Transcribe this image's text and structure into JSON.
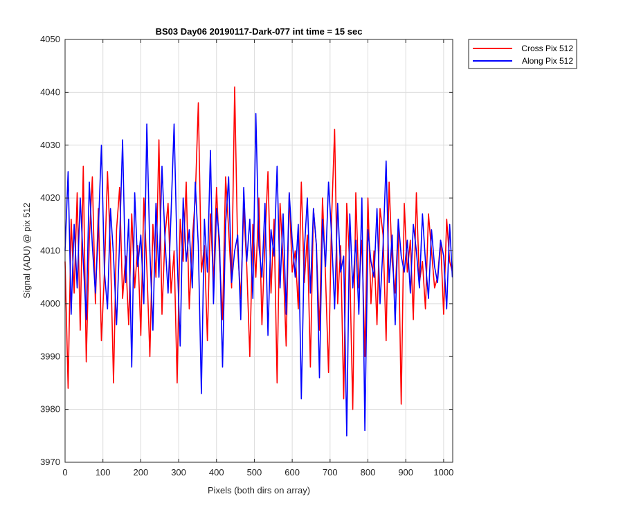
{
  "chart_data": {
    "type": "line",
    "title": "BS03 Day06 20190117-Dark-077 int time = 15 sec",
    "xlabel": "Pixels (both dirs on array)",
    "ylabel": "Signal (ADU) @ pix 512",
    "xlim": [
      0,
      1024
    ],
    "ylim": [
      3970,
      4050
    ],
    "xticks": [
      0,
      100,
      200,
      300,
      400,
      500,
      600,
      700,
      800,
      900,
      1000
    ],
    "yticks": [
      3970,
      3980,
      3990,
      4000,
      4010,
      4020,
      4030,
      4040,
      4050
    ],
    "grid": true,
    "legend_position": "outside-top-right",
    "series": [
      {
        "name": "Cross Pix 512",
        "color": "#ff0000",
        "x": [
          0,
          8,
          16,
          24,
          32,
          40,
          48,
          56,
          64,
          72,
          80,
          88,
          96,
          104,
          112,
          120,
          128,
          136,
          144,
          152,
          160,
          168,
          176,
          184,
          192,
          200,
          208,
          216,
          224,
          232,
          240,
          248,
          256,
          264,
          272,
          280,
          288,
          296,
          304,
          312,
          320,
          328,
          336,
          344,
          352,
          360,
          368,
          376,
          384,
          392,
          400,
          408,
          416,
          424,
          432,
          440,
          448,
          456,
          464,
          472,
          480,
          488,
          496,
          504,
          512,
          520,
          528,
          536,
          544,
          552,
          560,
          568,
          576,
          584,
          592,
          600,
          608,
          616,
          624,
          632,
          640,
          648,
          656,
          664,
          672,
          680,
          688,
          696,
          704,
          712,
          720,
          728,
          736,
          744,
          752,
          760,
          768,
          776,
          784,
          792,
          800,
          808,
          816,
          824,
          832,
          840,
          848,
          856,
          864,
          872,
          880,
          888,
          896,
          904,
          912,
          920,
          928,
          936,
          944,
          952,
          960,
          968,
          976,
          984,
          992,
          1000,
          1008,
          1016,
          1023
        ],
        "y": [
          4008,
          3984,
          4016,
          4002,
          4021,
          3995,
          4026,
          3989,
          4012,
          4024,
          4000,
          4018,
          3993,
          4006,
          4025,
          4010,
          3985,
          4014,
          4022,
          4001,
          4009,
          3996,
          4017,
          4003,
          4011,
          3994,
          4020,
          4007,
          3990,
          4015,
          4005,
          4031,
          3998,
          4013,
          4019,
          4002,
          4010,
          3985,
          4016,
          4008,
          4023,
          3999,
          4012,
          4020,
          4038,
          4006,
          4011,
          3993,
          4017,
          4004,
          4022,
          4009,
          3997,
          4024,
          4014,
          4003,
          4041,
          4010,
          4001,
          4018,
          4007,
          3990,
          4015,
          4005,
          4020,
          3996,
          4012,
          4025,
          4002,
          4016,
          3985,
          4019,
          4008,
          3992,
          4021,
          4006,
          4010,
          3999,
          4023,
          4004,
          4013,
          3988,
          4018,
          4011,
          3995,
          4020,
          4005,
          3987,
          4016,
          4033,
          4000,
          4011,
          3982,
          4019,
          4007,
          3980,
          4021,
          4003,
          4012,
          3990,
          4020,
          4000,
          4010,
          3996,
          4018,
          4013,
          3993,
          4023,
          4008,
          4002,
          4015,
          3981,
          4019,
          4006,
          4012,
          3997,
          4021,
          4004,
          4008,
          3999,
          4017,
          4010,
          4003,
          4005,
          4012,
          3998,
          4016,
          4008,
          4006
        ]
      },
      {
        "name": "Along Pix 512",
        "color": "#0000ff",
        "x": [
          0,
          8,
          16,
          24,
          32,
          40,
          48,
          56,
          64,
          72,
          80,
          88,
          96,
          104,
          112,
          120,
          128,
          136,
          144,
          152,
          160,
          168,
          176,
          184,
          192,
          200,
          208,
          216,
          224,
          232,
          240,
          248,
          256,
          264,
          272,
          280,
          288,
          296,
          304,
          312,
          320,
          328,
          336,
          344,
          352,
          360,
          368,
          376,
          384,
          392,
          400,
          408,
          416,
          424,
          432,
          440,
          448,
          456,
          464,
          472,
          480,
          488,
          496,
          504,
          512,
          520,
          528,
          536,
          544,
          552,
          560,
          568,
          576,
          584,
          592,
          600,
          608,
          616,
          624,
          632,
          640,
          648,
          656,
          664,
          672,
          680,
          688,
          696,
          704,
          712,
          720,
          728,
          736,
          744,
          752,
          760,
          768,
          776,
          784,
          792,
          800,
          808,
          816,
          824,
          832,
          840,
          848,
          856,
          864,
          872,
          880,
          888,
          896,
          904,
          912,
          920,
          928,
          936,
          944,
          952,
          960,
          968,
          976,
          984,
          992,
          1000,
          1008,
          1016,
          1023
        ],
        "y": [
          4010,
          4025,
          3998,
          4015,
          4003,
          4020,
          4008,
          3997,
          4023,
          4011,
          4002,
          4014,
          4030,
          4006,
          3999,
          4018,
          4009,
          3996,
          4012,
          4031,
          4004,
          4016,
          3988,
          4021,
          4007,
          4013,
          4000,
          4034,
          4010,
          3995,
          4019,
          4005,
          4026,
          4012,
          4002,
          4017,
          4034,
          4009,
          3992,
          4020,
          4008,
          4014,
          4003,
          4023,
          4011,
          3983,
          4016,
          4006,
          4029,
          4000,
          4018,
          4012,
          3988,
          4015,
          4024,
          4004,
          4010,
          4013,
          3997,
          4022,
          4008,
          4016,
          4001,
          4036,
          4011,
          4005,
          4019,
          3994,
          4014,
          4009,
          4026,
          4003,
          4017,
          3998,
          4021,
          4012,
          4005,
          4015,
          3982,
          4010,
          4020,
          4002,
          4018,
          4011,
          3986,
          4016,
          4007,
          4023,
          4013,
          3999,
          4019,
          4006,
          4009,
          3975,
          4017,
          4003,
          4012,
          3998,
          4020,
          3976,
          4014,
          4008,
          4005,
          4018,
          4000,
          4011,
          4027,
          4004,
          4013,
          3996,
          4016,
          4009,
          4006,
          4012,
          4002,
          4015,
          4010,
          4003,
          4017,
          4008,
          4001,
          4014,
          4007,
          4004,
          4012,
          4009,
          3999,
          4015,
          4005
        ]
      }
    ]
  }
}
